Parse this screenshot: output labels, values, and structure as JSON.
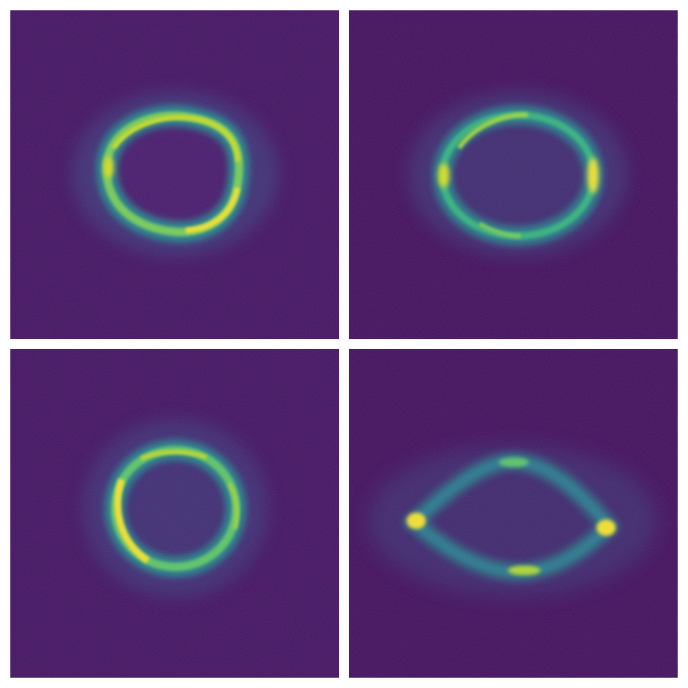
{
  "figure": {
    "panels": [
      {
        "name": "panel-top-left",
        "image": "lensed-einstein-ring-tilted"
      },
      {
        "name": "panel-top-right",
        "image": "lensed-einstein-ring-elliptical"
      },
      {
        "name": "panel-bottom-left",
        "image": "lensed-einstein-ring-circular"
      },
      {
        "name": "panel-bottom-right",
        "image": "lensed-einstein-cross-four-images"
      }
    ],
    "colormap": [
      "#440154",
      "#3b528b",
      "#21918c",
      "#5ec962",
      "#c8e020",
      "#fde725"
    ],
    "background": "#ffffff"
  }
}
